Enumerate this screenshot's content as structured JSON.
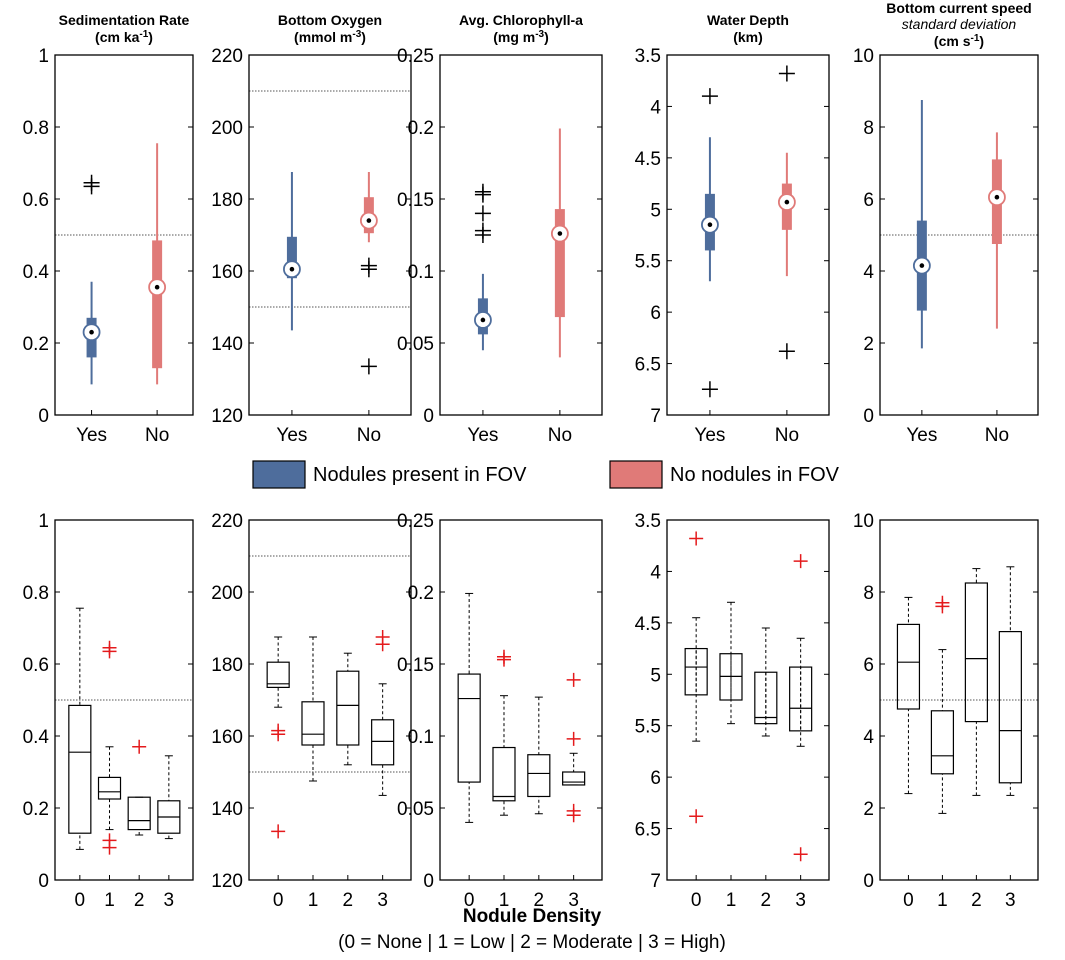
{
  "colors": {
    "yes": "#4e6d9c",
    "no": "#e07a78",
    "outlier_top": "#000000",
    "outlier_bottom": "#e41a1c",
    "ref_line": "#555555"
  },
  "legend": {
    "yes_label": "Nodules present in FOV",
    "no_label": "No nodules in FOV"
  },
  "footer": {
    "xlabel": "Nodule Density",
    "xdesc": "(0 = None | 1 = Low | 2 = Moderate | 3 = High)"
  },
  "chart_data": [
    {
      "id": "sedimentation",
      "type": "boxplot",
      "title": "Sedimentation Rate",
      "unit_prefix": "(cm ka",
      "unit_sup": "-1",
      "unit_suffix": ")",
      "subtitle": "",
      "ylim": [
        0,
        1
      ],
      "yticks": [
        0,
        0.2,
        0.4,
        0.6,
        0.8,
        1
      ],
      "ytick_labels": [
        "0",
        "0.2",
        "0.4",
        "0.6",
        "0.8",
        "1"
      ],
      "reversed": false,
      "ref_lines": [
        0.5
      ],
      "top": {
        "categories": [
          "Yes",
          "No"
        ],
        "boxes": [
          {
            "whislo": 0.085,
            "q1": 0.16,
            "med": 0.23,
            "q3": 0.27,
            "whishi": 0.37,
            "outliers": [
              0.635,
              0.645
            ]
          },
          {
            "whislo": 0.085,
            "q1": 0.13,
            "med": 0.355,
            "q3": 0.485,
            "whishi": 0.755,
            "outliers": []
          }
        ]
      },
      "bottom": {
        "categories": [
          "0",
          "1",
          "2",
          "3"
        ],
        "boxes": [
          {
            "whislo": 0.085,
            "q1": 0.13,
            "med": 0.355,
            "q3": 0.485,
            "whishi": 0.755,
            "outliers": []
          },
          {
            "whislo": 0.14,
            "q1": 0.225,
            "med": 0.245,
            "q3": 0.285,
            "whishi": 0.37,
            "outliers": [
              0.635,
              0.645,
              0.11,
              0.09
            ]
          },
          {
            "whislo": 0.125,
            "q1": 0.14,
            "med": 0.165,
            "q3": 0.23,
            "whishi": 0.23,
            "outliers": [
              0.37
            ]
          },
          {
            "whislo": 0.115,
            "q1": 0.13,
            "med": 0.175,
            "q3": 0.22,
            "whishi": 0.345,
            "outliers": []
          }
        ]
      }
    },
    {
      "id": "oxygen",
      "type": "boxplot",
      "title": "Bottom Oxygen",
      "unit_prefix": "(mmol m",
      "unit_sup": "-3",
      "unit_suffix": ")",
      "subtitle": "",
      "ylim": [
        120,
        220
      ],
      "yticks": [
        120,
        140,
        160,
        180,
        200,
        220
      ],
      "ytick_labels": [
        "120",
        "140",
        "160",
        "180",
        "200",
        "220"
      ],
      "reversed": false,
      "ref_lines": [
        150,
        210
      ],
      "top": {
        "categories": [
          "Yes",
          "No"
        ],
        "boxes": [
          {
            "whislo": 143.5,
            "q1": 158,
            "med": 160.5,
            "q3": 169.5,
            "whishi": 187.5,
            "outliers": []
          },
          {
            "whislo": 168,
            "q1": 170.5,
            "med": 174,
            "q3": 180.5,
            "whishi": 187.5,
            "outliers": [
              160.5,
              161.5,
              133.5
            ]
          }
        ]
      },
      "bottom": {
        "categories": [
          "0",
          "1",
          "2",
          "3"
        ],
        "boxes": [
          {
            "whislo": 168,
            "q1": 173.5,
            "med": 174.5,
            "q3": 180.5,
            "whishi": 187.5,
            "outliers": [
              160.5,
              161.5,
              133.5
            ]
          },
          {
            "whislo": 147.5,
            "q1": 157.5,
            "med": 160.5,
            "q3": 169.5,
            "whishi": 187.5,
            "outliers": []
          },
          {
            "whislo": 152,
            "q1": 157.5,
            "med": 168.5,
            "q3": 178,
            "whishi": 183,
            "outliers": []
          },
          {
            "whislo": 143.5,
            "q1": 152,
            "med": 158.5,
            "q3": 164.5,
            "whishi": 174.5,
            "outliers": [
              185.5,
              187.5
            ]
          }
        ]
      }
    },
    {
      "id": "chlorophyll",
      "type": "boxplot",
      "title": "Avg. Chlorophyll-a",
      "unit_prefix": "(mg m",
      "unit_sup": "-3",
      "unit_suffix": ")",
      "subtitle": "",
      "ylim": [
        0,
        0.25
      ],
      "yticks": [
        0,
        0.05,
        0.1,
        0.15,
        0.2,
        0.25
      ],
      "ytick_labels": [
        "0",
        "0.05",
        "0.1",
        "0.15",
        "0.2",
        "0.25"
      ],
      "reversed": false,
      "ref_lines": [],
      "top": {
        "categories": [
          "Yes",
          "No"
        ],
        "boxes": [
          {
            "whislo": 0.045,
            "q1": 0.056,
            "med": 0.066,
            "q3": 0.081,
            "whishi": 0.098,
            "outliers": [
              0.125,
              0.128,
              0.14,
              0.153,
              0.155
            ]
          },
          {
            "whislo": 0.04,
            "q1": 0.068,
            "med": 0.126,
            "q3": 0.143,
            "whishi": 0.199,
            "outliers": []
          }
        ]
      },
      "bottom": {
        "categories": [
          "0",
          "1",
          "2",
          "3"
        ],
        "boxes": [
          {
            "whislo": 0.04,
            "q1": 0.068,
            "med": 0.126,
            "q3": 0.143,
            "whishi": 0.199,
            "outliers": []
          },
          {
            "whislo": 0.045,
            "q1": 0.055,
            "med": 0.058,
            "q3": 0.092,
            "whishi": 0.128,
            "outliers": [
              0.153,
              0.155
            ]
          },
          {
            "whislo": 0.046,
            "q1": 0.058,
            "med": 0.074,
            "q3": 0.087,
            "whishi": 0.127,
            "outliers": []
          },
          {
            "whislo": 0.066,
            "q1": 0.066,
            "med": 0.068,
            "q3": 0.075,
            "whishi": 0.088,
            "outliers": [
              0.139,
              0.098,
              0.048,
              0.045
            ]
          }
        ]
      }
    },
    {
      "id": "depth",
      "type": "boxplot",
      "title": "Water Depth",
      "unit_prefix": "(km)",
      "unit_sup": "",
      "unit_suffix": "",
      "subtitle": "",
      "ylim": [
        3.5,
        7
      ],
      "yticks": [
        3.5,
        4,
        4.5,
        5,
        5.5,
        6,
        6.5,
        7
      ],
      "ytick_labels": [
        "3.5",
        "4",
        "4.5",
        "5",
        "5.5",
        "6",
        "6.5",
        "7"
      ],
      "reversed": true,
      "ref_lines": [],
      "top": {
        "categories": [
          "Yes",
          "No"
        ],
        "boxes": [
          {
            "whislo": 4.3,
            "q1": 4.85,
            "med": 5.15,
            "q3": 5.4,
            "whishi": 5.7,
            "outliers": [
              3.9,
              6.75
            ]
          },
          {
            "whislo": 4.45,
            "q1": 4.75,
            "med": 4.93,
            "q3": 5.2,
            "whishi": 5.65,
            "outliers": [
              3.68,
              6.38
            ]
          }
        ]
      },
      "bottom": {
        "categories": [
          "0",
          "1",
          "2",
          "3"
        ],
        "boxes": [
          {
            "whislo": 4.45,
            "q1": 4.75,
            "med": 4.93,
            "q3": 5.2,
            "whishi": 5.65,
            "outliers": [
              3.68,
              6.38
            ]
          },
          {
            "whislo": 4.3,
            "q1": 4.8,
            "med": 5.02,
            "q3": 5.25,
            "whishi": 5.48,
            "outliers": []
          },
          {
            "whislo": 4.55,
            "q1": 4.98,
            "med": 5.42,
            "q3": 5.48,
            "whishi": 5.6,
            "outliers": []
          },
          {
            "whislo": 4.65,
            "q1": 4.93,
            "med": 5.33,
            "q3": 5.55,
            "whishi": 5.7,
            "outliers": [
              3.9,
              6.75
            ]
          }
        ]
      }
    },
    {
      "id": "current",
      "type": "boxplot",
      "title": "Bottom current speed",
      "unit_prefix": "(cm s",
      "unit_sup": "-1",
      "unit_suffix": ")",
      "subtitle": "standard deviation",
      "ylim": [
        0,
        10
      ],
      "yticks": [
        0,
        2,
        4,
        6,
        8,
        10
      ],
      "ytick_labels": [
        "0",
        "2",
        "4",
        "6",
        "8",
        "10"
      ],
      "reversed": false,
      "ref_lines": [
        5
      ],
      "top": {
        "categories": [
          "Yes",
          "No"
        ],
        "boxes": [
          {
            "whislo": 1.85,
            "q1": 2.9,
            "med": 4.15,
            "q3": 5.4,
            "whishi": 8.75,
            "outliers": []
          },
          {
            "whislo": 2.4,
            "q1": 4.75,
            "med": 6.05,
            "q3": 7.1,
            "whishi": 7.85,
            "outliers": []
          }
        ]
      },
      "bottom": {
        "categories": [
          "0",
          "1",
          "2",
          "3"
        ],
        "boxes": [
          {
            "whislo": 2.4,
            "q1": 4.75,
            "med": 6.05,
            "q3": 7.1,
            "whishi": 7.85,
            "outliers": []
          },
          {
            "whislo": 1.85,
            "q1": 2.95,
            "med": 3.45,
            "q3": 4.7,
            "whishi": 6.4,
            "outliers": [
              7.6,
              7.7
            ]
          },
          {
            "whislo": 2.35,
            "q1": 4.4,
            "med": 6.15,
            "q3": 8.25,
            "whishi": 8.65,
            "outliers": []
          },
          {
            "whislo": 2.35,
            "q1": 2.7,
            "med": 4.15,
            "q3": 6.9,
            "whishi": 8.7,
            "outliers": []
          }
        ]
      }
    }
  ]
}
